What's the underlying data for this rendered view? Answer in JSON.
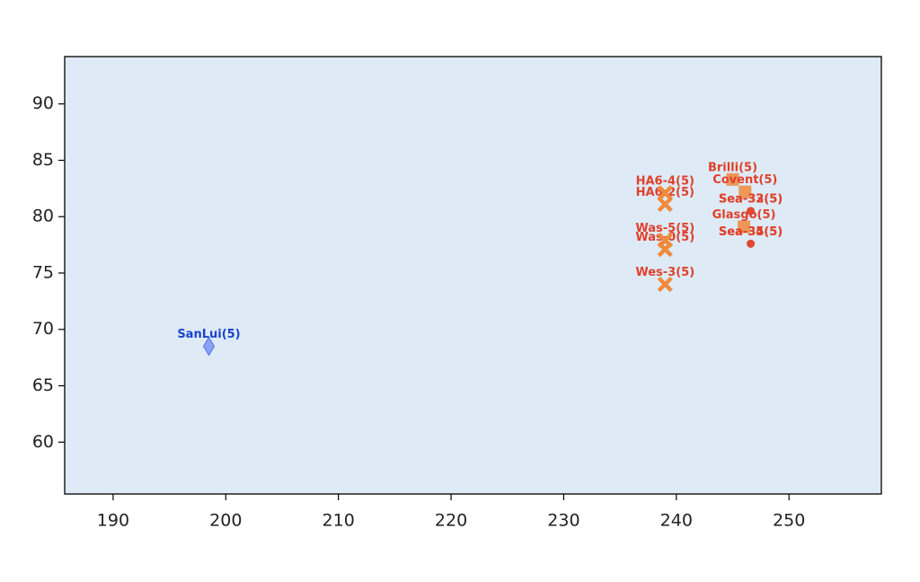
{
  "chart_data": {
    "type": "scatter",
    "xlim": [
      185.7,
      258.2
    ],
    "ylim": [
      55.4,
      94.2
    ],
    "xticks": [
      190,
      200,
      210,
      220,
      230,
      240,
      250
    ],
    "yticks": [
      60,
      65,
      70,
      75,
      80,
      85,
      90
    ],
    "background": "#deebf7",
    "points": [
      {
        "label": "SanLui(5)",
        "x": 198.5,
        "y": 68.5,
        "marker": "diamond",
        "color": "#5470f0",
        "label_color": "#1a44cc"
      },
      {
        "label": "Wes-3(5)",
        "x": 239,
        "y": 74,
        "marker": "x",
        "color": "#f08a3c",
        "label_color": "#e0402a"
      },
      {
        "label": "Was-0(5)",
        "x": 239,
        "y": 77.1,
        "marker": "x",
        "color": "#f08a3c",
        "label_color": "#e0402a"
      },
      {
        "label": "Was-5(5)",
        "x": 239,
        "y": 77.9,
        "marker": "x",
        "color": "#f08a3c",
        "label_color": "#e0402a"
      },
      {
        "label": "HA6-2(5)",
        "x": 239,
        "y": 81.1,
        "marker": "x",
        "color": "#f08a3c",
        "label_color": "#e0402a"
      },
      {
        "label": "HA6-4(5)",
        "x": 239,
        "y": 82.1,
        "marker": "x",
        "color": "#f08a3c",
        "label_color": "#e0402a"
      },
      {
        "label": "Brilli(5)",
        "x": 245,
        "y": 83.3,
        "marker": "square",
        "color": "#f08a3c",
        "label_color": "#e0402a"
      },
      {
        "label": "Covent(5)",
        "x": 246.1,
        "y": 82.2,
        "marker": "square",
        "color": "#f08a3c",
        "label_color": "#e0402a"
      },
      {
        "label": "Sea-32(5)",
        "x": 246.6,
        "y": 80.5,
        "marker": "circle",
        "color": "#e0452f",
        "label_color": "#e0402a"
      },
      {
        "label": "Sea-33(5)",
        "x": 246.6,
        "y": 80.5,
        "marker": "circle",
        "color": "#e0452f",
        "label_color": "#e0402a"
      },
      {
        "label": "Glasgo(5)",
        "x": 246,
        "y": 79.1,
        "marker": "square",
        "color": "#f08a3c",
        "label_color": "#e0402a"
      },
      {
        "label": "Sea-34(5)",
        "x": 246.6,
        "y": 77.6,
        "marker": "circle",
        "color": "#e0452f",
        "label_color": "#e0402a"
      },
      {
        "label": "Sea-35(5)",
        "x": 246.6,
        "y": 77.6,
        "marker": "circle",
        "color": "#e0452f",
        "label_color": "#e0402a"
      }
    ]
  }
}
